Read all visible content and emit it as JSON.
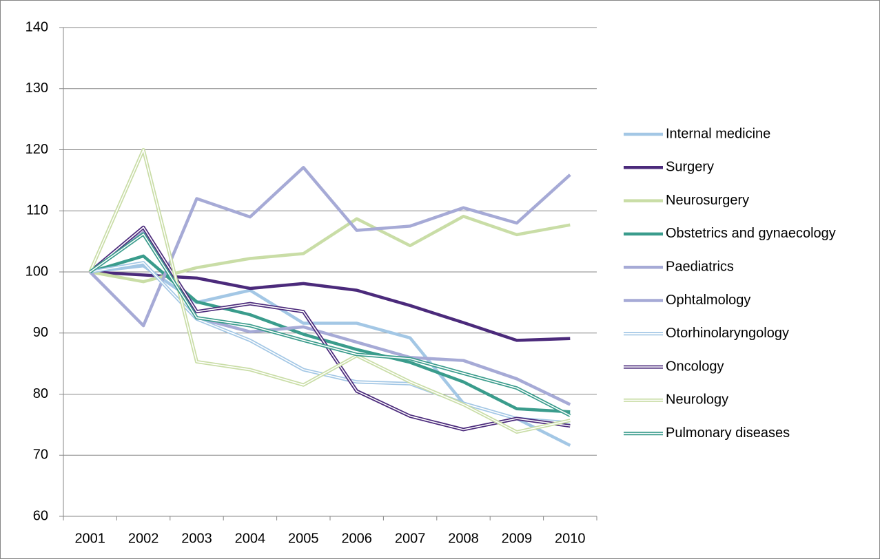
{
  "chart_data": {
    "type": "line",
    "categories": [
      "2001",
      "2002",
      "2003",
      "2004",
      "2005",
      "2006",
      "2007",
      "2008",
      "2009",
      "2010"
    ],
    "ylim": [
      60,
      140
    ],
    "yticks": [
      60,
      70,
      80,
      90,
      100,
      110,
      120,
      130,
      140
    ],
    "grid": true,
    "legend": "right",
    "series": [
      {
        "name": "Internal medicine",
        "color": "#a3c7e5",
        "style": "solid",
        "values": [
          100,
          101,
          95,
          97,
          91.6,
          91.6,
          89.2,
          78.5,
          76,
          71.6
        ]
      },
      {
        "name": "Surgery",
        "color": "#4b2a7b",
        "style": "solid",
        "values": [
          100,
          99.5,
          99,
          97.3,
          98.1,
          97,
          94.5,
          91.7,
          88.8,
          89.1
        ]
      },
      {
        "name": "Neurosurgery",
        "color": "#c9dda6",
        "style": "solid",
        "values": [
          100,
          98.4,
          100.7,
          102.2,
          103,
          108.7,
          104.3,
          109.1,
          106.1,
          107.7
        ]
      },
      {
        "name": "Obstetrics and gynaecology",
        "color": "#3a9c8c",
        "style": "solid",
        "values": [
          100,
          102.6,
          95.1,
          93,
          89.8,
          87.3,
          85.2,
          82,
          77.6,
          77.1
        ]
      },
      {
        "name": "Paediatrics",
        "color": "#a6aad6",
        "style": "solid",
        "values": [
          100,
          91.2,
          112,
          109,
          117.1,
          106.8,
          107.5,
          110.5,
          108,
          115.9
        ]
      },
      {
        "name": "Ophtalmology",
        "color": "#a6aad6",
        "style": "solid",
        "values": [
          100,
          106.5,
          92.5,
          90.2,
          91,
          88.5,
          86,
          85.5,
          82.5,
          78.3
        ]
      },
      {
        "name": "Otorhinolaryngology",
        "color": "#a3c7e5",
        "style": "double",
        "values": [
          100,
          101.5,
          92.3,
          88.8,
          84,
          82,
          81.7,
          78.5,
          76,
          75.3
        ]
      },
      {
        "name": "Oncology",
        "color": "#4b2a7b",
        "style": "double",
        "values": [
          100,
          107.3,
          93.5,
          94.8,
          93.5,
          80.5,
          76.4,
          74.2,
          76,
          74.8
        ]
      },
      {
        "name": "Neurology",
        "color": "#c9dda6",
        "style": "double",
        "values": [
          100,
          120,
          85.3,
          84,
          81.5,
          86.3,
          82,
          78.3,
          73.8,
          75.7
        ]
      },
      {
        "name": "Pulmonary diseases",
        "color": "#3a9c8c",
        "style": "double",
        "values": [
          100,
          106.2,
          92.5,
          91.2,
          88.8,
          86.5,
          85.8,
          83.4,
          81,
          76.5
        ]
      }
    ]
  }
}
